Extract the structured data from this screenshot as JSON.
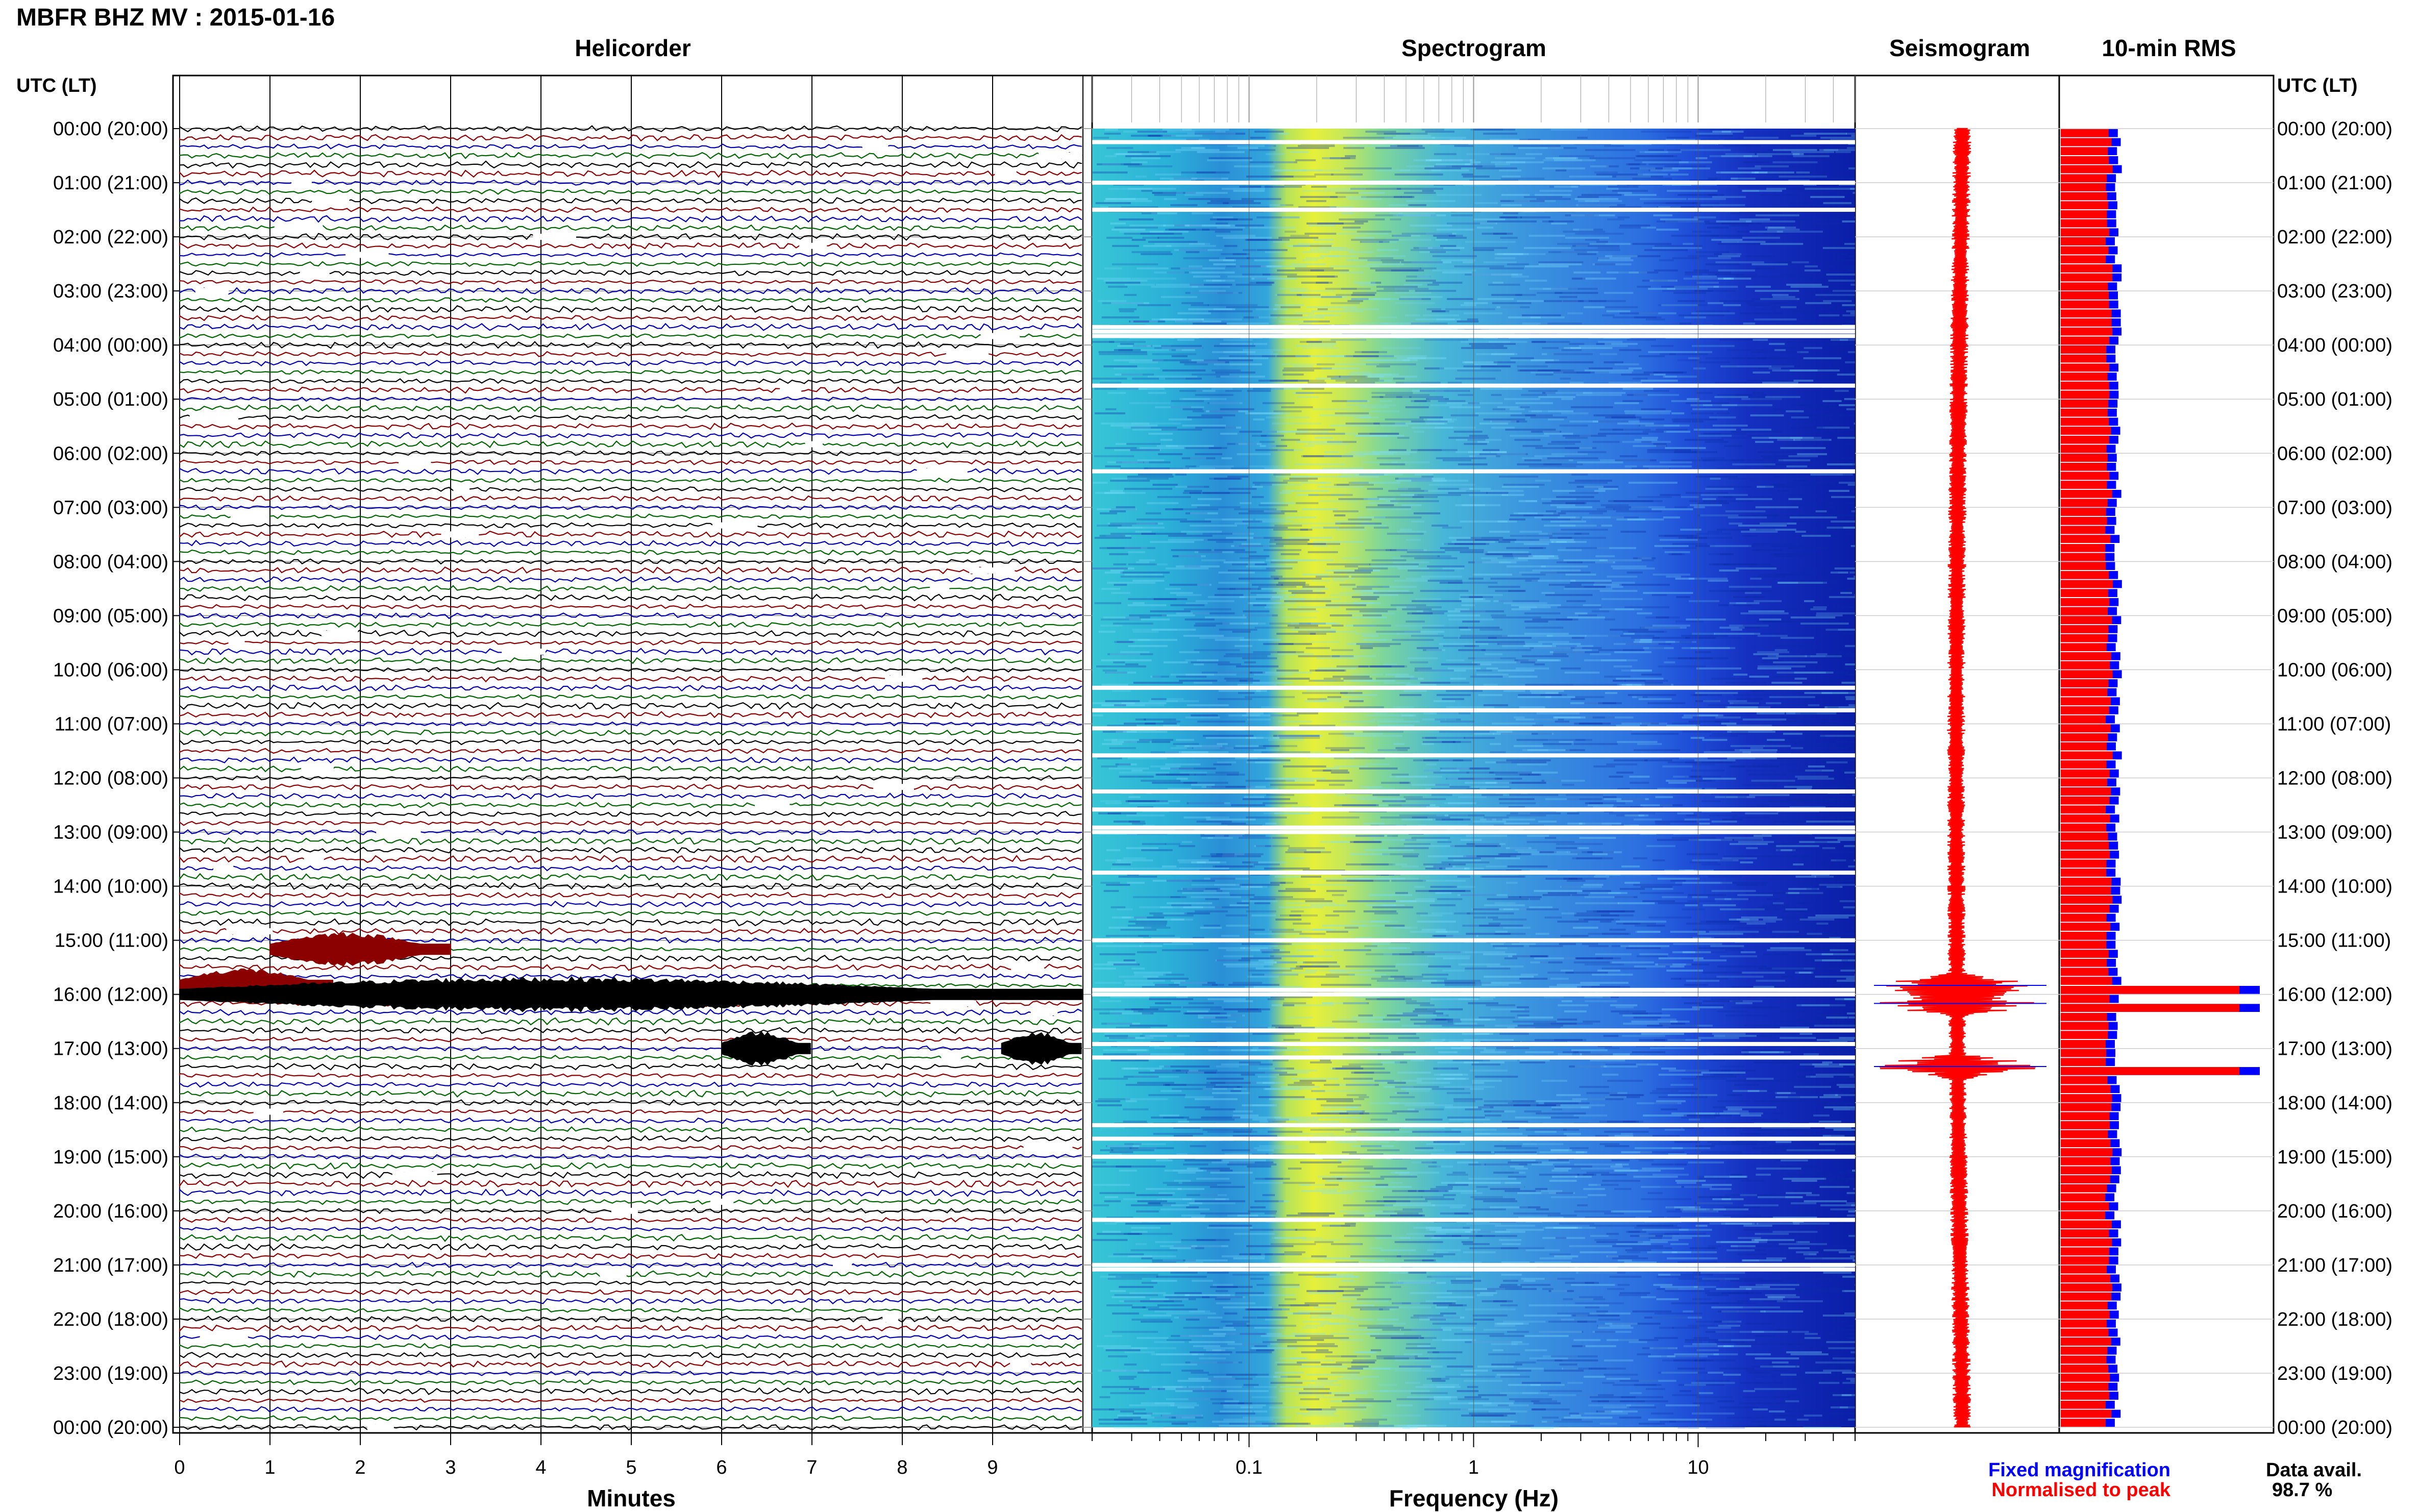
{
  "header": {
    "title": "MBFR BHZ MV : 2015-01-16"
  },
  "panels": {
    "helicorder": "Helicorder",
    "spectrogram": "Spectrogram",
    "seismogram": "Seismogram",
    "rms": "10-min RMS"
  },
  "axis": {
    "left_header": "UTC (LT)",
    "right_header": "UTC (LT)",
    "time_labels": [
      "00:00 (20:00)",
      "01:00 (21:00)",
      "02:00 (22:00)",
      "03:00 (23:00)",
      "04:00 (00:00)",
      "05:00 (01:00)",
      "06:00 (02:00)",
      "07:00 (03:00)",
      "08:00 (04:00)",
      "09:00 (05:00)",
      "10:00 (06:00)",
      "11:00 (07:00)",
      "12:00 (08:00)",
      "13:00 (09:00)",
      "14:00 (10:00)",
      "15:00 (11:00)",
      "16:00 (12:00)",
      "17:00 (13:00)",
      "18:00 (14:00)",
      "19:00 (15:00)",
      "20:00 (16:00)",
      "21:00 (17:00)",
      "22:00 (18:00)",
      "23:00 (19:00)",
      "00:00 (20:00)"
    ],
    "minutes_label": "Minutes",
    "minutes_ticks": [
      "0",
      "1",
      "2",
      "3",
      "4",
      "5",
      "6",
      "7",
      "8",
      "9"
    ],
    "freq_label": "Frequency (Hz)",
    "freq_ticks": [
      "0.1",
      "1",
      "10"
    ]
  },
  "legend": {
    "fixed": "Fixed magnification",
    "normalised": "Normalised to peak",
    "data_avail_label": "Data avail.",
    "data_avail_value": "98.7 %"
  },
  "colors": {
    "trace_colors": [
      "#000000",
      "#8b0000",
      "#0000b0",
      "#006400"
    ],
    "fixed": "#0000ff",
    "normalised": "#ff0000"
  },
  "chart_data": {
    "type": "heatmap",
    "title": "MBFR BHZ MV : 2015-01-16",
    "helicorder": {
      "xlabel": "Minutes",
      "xlim": [
        0,
        10
      ],
      "rows_per_hour": 6,
      "events": [
        {
          "utc": "15:10",
          "start_min": 1.0,
          "end_min": 3.0,
          "color": "#8b0000"
        },
        {
          "utc": "15:50",
          "start_min": 0.0,
          "end_min": 1.7,
          "color": "#8b0000"
        },
        {
          "utc": "16:00",
          "start_min": 0.0,
          "end_min": 10.0,
          "color": "#000000"
        },
        {
          "utc": "17:00",
          "start_min": 6.0,
          "end_min": 7.0,
          "color": "#000000"
        },
        {
          "utc": "17:00",
          "start_min": 9.1,
          "end_min": 10.0,
          "color": "#000000"
        }
      ]
    },
    "spectrogram": {
      "xlabel": "Frequency (Hz)",
      "xscale": "log",
      "xlim": [
        0.02,
        50
      ],
      "peak_band_hz": [
        0.15,
        0.4
      ]
    },
    "rms": {
      "series": [
        {
          "name": "Fixed magnification",
          "color": "#0000ff"
        },
        {
          "name": "Normalised to peak",
          "color": "#ff0000"
        }
      ],
      "spikes_utc": [
        "15:50",
        "16:10",
        "17:20"
      ]
    },
    "data_availability_percent": 98.7
  }
}
